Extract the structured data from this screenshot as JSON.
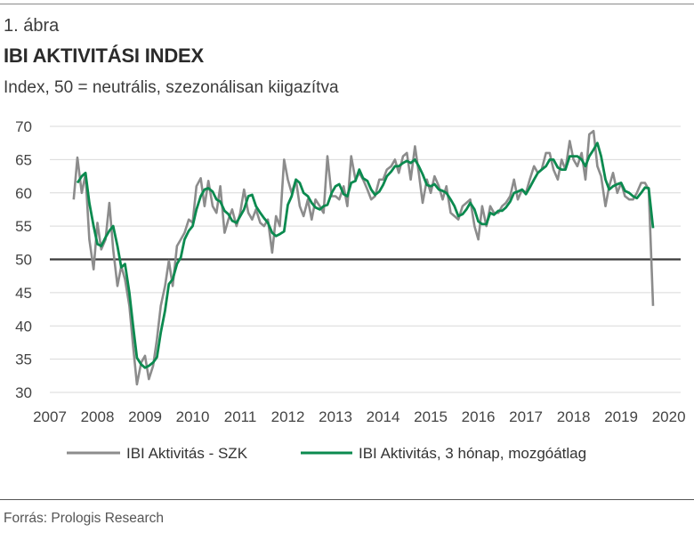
{
  "figure": {
    "label": "1. ábra",
    "title": "IBI AKTIVITÁSI INDEX",
    "subtitle": "Index, 50 = neutrális, szezonálisan kiigazítva",
    "source": "Forrás: Prologis Research"
  },
  "colors": {
    "series_raw": "#8c8c8c",
    "series_avg": "#0b8a4f",
    "reference_line": "#3a3a3a",
    "grid": "#d9d9d9"
  },
  "chart_data": {
    "type": "line",
    "title": "IBI AKTIVITÁSI INDEX",
    "xlabel": "",
    "ylabel": "",
    "xlim": [
      2007,
      2020.25
    ],
    "ylim": [
      30,
      70
    ],
    "yticks": [
      30,
      35,
      40,
      45,
      50,
      55,
      60,
      65,
      70
    ],
    "xticks": [
      "2007",
      "2008",
      "2009",
      "2010",
      "2011",
      "2012",
      "2013",
      "2014",
      "2015",
      "2016",
      "2017",
      "2018",
      "2019",
      "2020"
    ],
    "grid": "horizontal",
    "reference_line": {
      "y": 50
    },
    "legend_position": "bottom",
    "series": [
      {
        "name": "IBI Aktivitás - SZK",
        "points": [
          [
            2007.5,
            59
          ],
          [
            2007.58,
            65.3
          ],
          [
            2007.67,
            60
          ],
          [
            2007.75,
            62.8
          ],
          [
            2007.83,
            53
          ],
          [
            2007.92,
            48.5
          ],
          [
            2008.0,
            55.5
          ],
          [
            2008.08,
            51.5
          ],
          [
            2008.17,
            53
          ],
          [
            2008.25,
            58.5
          ],
          [
            2008.33,
            51.5
          ],
          [
            2008.42,
            46
          ],
          [
            2008.5,
            49
          ],
          [
            2008.58,
            47
          ],
          [
            2008.67,
            43
          ],
          [
            2008.75,
            37
          ],
          [
            2008.83,
            31.2
          ],
          [
            2008.92,
            34.5
          ],
          [
            2009.0,
            35.5
          ],
          [
            2009.08,
            32
          ],
          [
            2009.17,
            34
          ],
          [
            2009.25,
            38
          ],
          [
            2009.33,
            43
          ],
          [
            2009.42,
            46
          ],
          [
            2009.5,
            49.8
          ],
          [
            2009.58,
            46
          ],
          [
            2009.67,
            52
          ],
          [
            2009.75,
            53
          ],
          [
            2009.83,
            54
          ],
          [
            2009.92,
            56
          ],
          [
            2010.0,
            55.5
          ],
          [
            2010.08,
            61
          ],
          [
            2010.17,
            62.2
          ],
          [
            2010.25,
            58
          ],
          [
            2010.33,
            61.8
          ],
          [
            2010.42,
            58
          ],
          [
            2010.5,
            57
          ],
          [
            2010.58,
            61
          ],
          [
            2010.67,
            54
          ],
          [
            2010.75,
            56
          ],
          [
            2010.83,
            57.5
          ],
          [
            2010.92,
            55
          ],
          [
            2011.0,
            57
          ],
          [
            2011.08,
            60.5
          ],
          [
            2011.17,
            57
          ],
          [
            2011.25,
            56
          ],
          [
            2011.33,
            57.5
          ],
          [
            2011.42,
            55.5
          ],
          [
            2011.5,
            55
          ],
          [
            2011.58,
            56
          ],
          [
            2011.67,
            51
          ],
          [
            2011.75,
            56.5
          ],
          [
            2011.83,
            55
          ],
          [
            2011.92,
            65
          ],
          [
            2012.0,
            62
          ],
          [
            2012.08,
            60
          ],
          [
            2012.17,
            62
          ],
          [
            2012.25,
            58
          ],
          [
            2012.33,
            56.5
          ],
          [
            2012.42,
            59
          ],
          [
            2012.5,
            56
          ],
          [
            2012.58,
            59
          ],
          [
            2012.67,
            58
          ],
          [
            2012.75,
            57
          ],
          [
            2012.83,
            65.5
          ],
          [
            2012.92,
            59.5
          ],
          [
            2013.0,
            59.5
          ],
          [
            2013.08,
            59
          ],
          [
            2013.17,
            61
          ],
          [
            2013.25,
            58
          ],
          [
            2013.33,
            65.5
          ],
          [
            2013.42,
            62
          ],
          [
            2013.5,
            63
          ],
          [
            2013.58,
            62
          ],
          [
            2013.67,
            60.5
          ],
          [
            2013.75,
            59
          ],
          [
            2013.83,
            59.5
          ],
          [
            2013.92,
            62
          ],
          [
            2014.0,
            62
          ],
          [
            2014.08,
            63.5
          ],
          [
            2014.17,
            64
          ],
          [
            2014.25,
            65
          ],
          [
            2014.33,
            63
          ],
          [
            2014.42,
            65.5
          ],
          [
            2014.5,
            66
          ],
          [
            2014.58,
            62
          ],
          [
            2014.67,
            67
          ],
          [
            2014.75,
            63
          ],
          [
            2014.83,
            58.5
          ],
          [
            2014.92,
            62
          ],
          [
            2015.0,
            60
          ],
          [
            2015.08,
            62.5
          ],
          [
            2015.17,
            61
          ],
          [
            2015.25,
            59
          ],
          [
            2015.33,
            61
          ],
          [
            2015.42,
            57
          ],
          [
            2015.5,
            56.5
          ],
          [
            2015.58,
            56
          ],
          [
            2015.67,
            58
          ],
          [
            2015.75,
            58.5
          ],
          [
            2015.83,
            59
          ],
          [
            2015.92,
            55
          ],
          [
            2016.0,
            53
          ],
          [
            2016.08,
            58
          ],
          [
            2016.17,
            55
          ],
          [
            2016.25,
            58
          ],
          [
            2016.33,
            57
          ],
          [
            2016.42,
            57
          ],
          [
            2016.5,
            58
          ],
          [
            2016.58,
            58.5
          ],
          [
            2016.67,
            59.5
          ],
          [
            2016.75,
            62
          ],
          [
            2016.83,
            59
          ],
          [
            2016.92,
            60.5
          ],
          [
            2017.0,
            60
          ],
          [
            2017.08,
            62
          ],
          [
            2017.17,
            64
          ],
          [
            2017.25,
            63
          ],
          [
            2017.33,
            63.5
          ],
          [
            2017.42,
            66
          ],
          [
            2017.5,
            66
          ],
          [
            2017.58,
            63.5
          ],
          [
            2017.67,
            62
          ],
          [
            2017.75,
            65
          ],
          [
            2017.83,
            63.5
          ],
          [
            2017.92,
            67.8
          ],
          [
            2018.0,
            65
          ],
          [
            2018.08,
            64
          ],
          [
            2018.17,
            66
          ],
          [
            2018.25,
            62
          ],
          [
            2018.33,
            68.8
          ],
          [
            2018.42,
            69.3
          ],
          [
            2018.5,
            64
          ],
          [
            2018.58,
            62.5
          ],
          [
            2018.67,
            58
          ],
          [
            2018.75,
            61
          ],
          [
            2018.83,
            63
          ],
          [
            2018.92,
            60
          ],
          [
            2019.0,
            61.5
          ],
          [
            2019.08,
            59.5
          ],
          [
            2019.17,
            59
          ],
          [
            2019.25,
            59
          ],
          [
            2019.33,
            60
          ],
          [
            2019.42,
            61.5
          ],
          [
            2019.5,
            61.5
          ],
          [
            2019.58,
            60.5
          ],
          [
            2019.67,
            43
          ]
        ]
      },
      {
        "name": "IBI Aktivitás, 3 hónap, mozgóátlag",
        "points": [
          [
            2007.58,
            61.5
          ],
          [
            2007.67,
            62.5
          ],
          [
            2007.75,
            63
          ],
          [
            2007.83,
            58.5
          ],
          [
            2007.92,
            55
          ],
          [
            2008.0,
            52.3
          ],
          [
            2008.08,
            52
          ],
          [
            2008.17,
            53.3
          ],
          [
            2008.25,
            54.3
          ],
          [
            2008.33,
            55
          ],
          [
            2008.42,
            52
          ],
          [
            2008.5,
            48.8
          ],
          [
            2008.58,
            49.3
          ],
          [
            2008.67,
            45
          ],
          [
            2008.75,
            40
          ],
          [
            2008.83,
            35.2
          ],
          [
            2008.92,
            34.2
          ],
          [
            2009.0,
            33.7
          ],
          [
            2009.08,
            34
          ],
          [
            2009.17,
            34.5
          ],
          [
            2009.25,
            35.3
          ],
          [
            2009.33,
            39
          ],
          [
            2009.42,
            42.3
          ],
          [
            2009.5,
            46.3
          ],
          [
            2009.58,
            47
          ],
          [
            2009.67,
            49.3
          ],
          [
            2009.75,
            50.3
          ],
          [
            2009.83,
            53
          ],
          [
            2009.92,
            54.3
          ],
          [
            2010.0,
            55
          ],
          [
            2010.08,
            57.5
          ],
          [
            2010.17,
            59.5
          ],
          [
            2010.25,
            60.5
          ],
          [
            2010.33,
            60.7
          ],
          [
            2010.42,
            60.2
          ],
          [
            2010.5,
            59
          ],
          [
            2010.58,
            58.7
          ],
          [
            2010.67,
            57.3
          ],
          [
            2010.75,
            56.8
          ],
          [
            2010.83,
            55.8
          ],
          [
            2010.92,
            55.5
          ],
          [
            2011.0,
            56.5
          ],
          [
            2011.08,
            57.5
          ],
          [
            2011.17,
            59.5
          ],
          [
            2011.25,
            59.7
          ],
          [
            2011.33,
            58
          ],
          [
            2011.42,
            57
          ],
          [
            2011.5,
            56.2
          ],
          [
            2011.58,
            55.5
          ],
          [
            2011.67,
            54
          ],
          [
            2011.75,
            53.5
          ],
          [
            2011.83,
            53.8
          ],
          [
            2011.92,
            54.2
          ],
          [
            2012.0,
            58.2
          ],
          [
            2012.08,
            59.5
          ],
          [
            2012.17,
            62
          ],
          [
            2012.25,
            61.5
          ],
          [
            2012.33,
            60
          ],
          [
            2012.42,
            59.5
          ],
          [
            2012.5,
            58.5
          ],
          [
            2012.58,
            57.8
          ],
          [
            2012.67,
            57.5
          ],
          [
            2012.75,
            58
          ],
          [
            2012.83,
            58.2
          ],
          [
            2012.92,
            60
          ],
          [
            2013.0,
            61
          ],
          [
            2013.08,
            61.3
          ],
          [
            2013.17,
            59.8
          ],
          [
            2013.25,
            59.5
          ],
          [
            2013.33,
            61.5
          ],
          [
            2013.42,
            61.8
          ],
          [
            2013.5,
            63.5
          ],
          [
            2013.58,
            62.2
          ],
          [
            2013.67,
            61.8
          ],
          [
            2013.75,
            60.5
          ],
          [
            2013.83,
            59.7
          ],
          [
            2013.92,
            60.2
          ],
          [
            2014.0,
            61.2
          ],
          [
            2014.08,
            62.5
          ],
          [
            2014.17,
            63.2
          ],
          [
            2014.25,
            64
          ],
          [
            2014.33,
            64
          ],
          [
            2014.42,
            64.5
          ],
          [
            2014.5,
            64.8
          ],
          [
            2014.58,
            64.5
          ],
          [
            2014.67,
            65
          ],
          [
            2014.75,
            64
          ],
          [
            2014.83,
            62.8
          ],
          [
            2014.92,
            61.2
          ],
          [
            2015.0,
            61
          ],
          [
            2015.08,
            61.3
          ],
          [
            2015.17,
            60.5
          ],
          [
            2015.25,
            60.3
          ],
          [
            2015.33,
            60
          ],
          [
            2015.42,
            59
          ],
          [
            2015.5,
            58
          ],
          [
            2015.58,
            56.5
          ],
          [
            2015.67,
            56.8
          ],
          [
            2015.75,
            57.5
          ],
          [
            2015.83,
            58.5
          ],
          [
            2015.92,
            57.5
          ],
          [
            2016.0,
            55.7
          ],
          [
            2016.08,
            55.3
          ],
          [
            2016.17,
            55.3
          ],
          [
            2016.25,
            57
          ],
          [
            2016.33,
            56.7
          ],
          [
            2016.42,
            57.3
          ],
          [
            2016.5,
            57.3
          ],
          [
            2016.58,
            57.8
          ],
          [
            2016.67,
            58.7
          ],
          [
            2016.75,
            60
          ],
          [
            2016.83,
            60.2
          ],
          [
            2016.92,
            60.5
          ],
          [
            2017.0,
            59.8
          ],
          [
            2017.08,
            60.8
          ],
          [
            2017.17,
            62
          ],
          [
            2017.25,
            63
          ],
          [
            2017.33,
            63.5
          ],
          [
            2017.42,
            64
          ],
          [
            2017.5,
            65
          ],
          [
            2017.58,
            65
          ],
          [
            2017.67,
            63.8
          ],
          [
            2017.75,
            63.5
          ],
          [
            2017.83,
            63.5
          ],
          [
            2017.92,
            65.5
          ],
          [
            2018.0,
            65.5
          ],
          [
            2018.08,
            65.5
          ],
          [
            2018.17,
            65
          ],
          [
            2018.25,
            64
          ],
          [
            2018.33,
            65.5
          ],
          [
            2018.42,
            66.5
          ],
          [
            2018.5,
            67.5
          ],
          [
            2018.58,
            65.5
          ],
          [
            2018.67,
            62
          ],
          [
            2018.75,
            60.5
          ],
          [
            2018.83,
            61
          ],
          [
            2018.92,
            61.3
          ],
          [
            2019.0,
            61.5
          ],
          [
            2019.08,
            60.3
          ],
          [
            2019.17,
            60
          ],
          [
            2019.25,
            59.5
          ],
          [
            2019.33,
            59.2
          ],
          [
            2019.42,
            60
          ],
          [
            2019.5,
            60.8
          ],
          [
            2019.58,
            60.7
          ],
          [
            2019.67,
            54.7
          ]
        ]
      }
    ]
  }
}
